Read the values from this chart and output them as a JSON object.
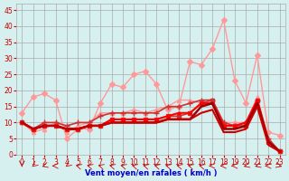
{
  "x": [
    0,
    1,
    2,
    3,
    4,
    5,
    6,
    7,
    8,
    9,
    10,
    11,
    12,
    13,
    14,
    15,
    16,
    17,
    18,
    19,
    20,
    21,
    22,
    23
  ],
  "series": [
    {
      "color": "#ff9999",
      "marker": "D",
      "markersize": 3,
      "linewidth": 1.0,
      "y": [
        13,
        18,
        19,
        17,
        5,
        8,
        8,
        16,
        22,
        21,
        25,
        26,
        22,
        14,
        15,
        29,
        28,
        33,
        42,
        23,
        16,
        31,
        7,
        6
      ]
    },
    {
      "color": "#ff9999",
      "marker": "^",
      "markersize": 3,
      "linewidth": 1.0,
      "y": [
        10,
        7,
        8,
        10,
        7,
        9,
        10,
        13,
        13,
        13,
        14,
        13,
        14,
        15,
        17,
        17,
        16,
        17,
        10,
        10,
        10,
        18,
        5,
        1
      ]
    },
    {
      "color": "#cc3333",
      "marker": "+",
      "markersize": 4,
      "linewidth": 1.2,
      "y": [
        10,
        8,
        10,
        10,
        9,
        10,
        10,
        12,
        13,
        13,
        13,
        13,
        13,
        15,
        15,
        16,
        17,
        17,
        10,
        9,
        10,
        17,
        5,
        1
      ]
    },
    {
      "color": "#cc3333",
      "marker": "s",
      "markersize": 3,
      "linewidth": 1.2,
      "y": [
        10,
        8,
        9,
        9,
        8,
        8,
        9,
        9,
        11,
        11,
        11,
        11,
        11,
        12,
        12,
        13,
        16,
        17,
        9,
        9,
        9,
        17,
        4,
        1
      ]
    },
    {
      "color": "#ff0000",
      "marker": "o",
      "markersize": 2,
      "linewidth": 1.5,
      "y": [
        10,
        8,
        9,
        9,
        8,
        8,
        9,
        9,
        11,
        11,
        11,
        11,
        11,
        12,
        13,
        13,
        16,
        16,
        9,
        9,
        10,
        17,
        4,
        1
      ]
    },
    {
      "color": "#990000",
      "marker": null,
      "markersize": 0,
      "linewidth": 1.8,
      "y": [
        10,
        8,
        9,
        9,
        8,
        8,
        9,
        9,
        10,
        10,
        10,
        10,
        10,
        11,
        11,
        11,
        15,
        16,
        8,
        8,
        9,
        16,
        4,
        1
      ]
    },
    {
      "color": "#cc0000",
      "marker": null,
      "markersize": 0,
      "linewidth": 1.5,
      "y": [
        10,
        8,
        9,
        9,
        8,
        8,
        9,
        9,
        10,
        10,
        10,
        10,
        10,
        11,
        11,
        11,
        13,
        14,
        7,
        7,
        8,
        15,
        3,
        1
      ]
    }
  ],
  "xlim": [
    -0.5,
    23.5
  ],
  "ylim": [
    0,
    47
  ],
  "yticks": [
    0,
    5,
    10,
    15,
    20,
    25,
    30,
    35,
    40,
    45
  ],
  "xticks": [
    0,
    1,
    2,
    3,
    4,
    5,
    6,
    7,
    8,
    9,
    10,
    11,
    12,
    13,
    14,
    15,
    16,
    17,
    18,
    19,
    20,
    21,
    22,
    23
  ],
  "xlabel": "Vent moyen/en rafales ( km/h )",
  "bg_color": "#d6f0f0",
  "grid_color": "#aaaaaa",
  "tick_color": "#cc0000",
  "label_color": "#cc0000",
  "xlabel_color": "#0000cc"
}
